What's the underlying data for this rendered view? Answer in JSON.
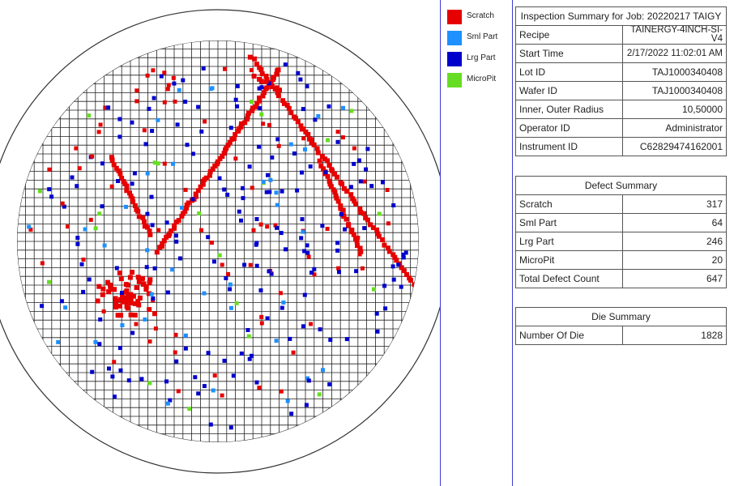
{
  "legend": [
    {
      "label": "Scratch",
      "color": "#e60000"
    },
    {
      "label": "Sml Part",
      "color": "#1e90ff"
    },
    {
      "label": "Lrg Part",
      "color": "#0000cc"
    },
    {
      "label": "MicroPit",
      "color": "#66dd22"
    }
  ],
  "inspection": {
    "title": "Inspection Summary for Job: 20220217 TAIGY",
    "rows": [
      {
        "label": "Recipe",
        "value": "TAINERGY-4INCH-SI-V4"
      },
      {
        "label": "Start Time",
        "value": "2/17/2022 11:02:01 AM"
      },
      {
        "label": "Lot ID",
        "value": "TAJ1000340408"
      },
      {
        "label": "Wafer ID",
        "value": "TAJ1000340408"
      },
      {
        "label": "Inner, Outer Radius",
        "value": "10,50000"
      },
      {
        "label": "Operator ID",
        "value": "Administrator"
      },
      {
        "label": "Instrument ID",
        "value": "C62829474162001"
      }
    ]
  },
  "defect_summary": {
    "title": "Defect Summary",
    "rows": [
      {
        "label": "Scratch",
        "value": "317"
      },
      {
        "label": "Sml Part",
        "value": "64"
      },
      {
        "label": "Lrg Part",
        "value": "246"
      },
      {
        "label": "MicroPit",
        "value": "20"
      },
      {
        "label": "Total Defect Count",
        "value": "647"
      }
    ]
  },
  "die_summary": {
    "title": "Die Summary",
    "rows": [
      {
        "label": "Number Of Die",
        "value": "1828"
      }
    ]
  }
}
